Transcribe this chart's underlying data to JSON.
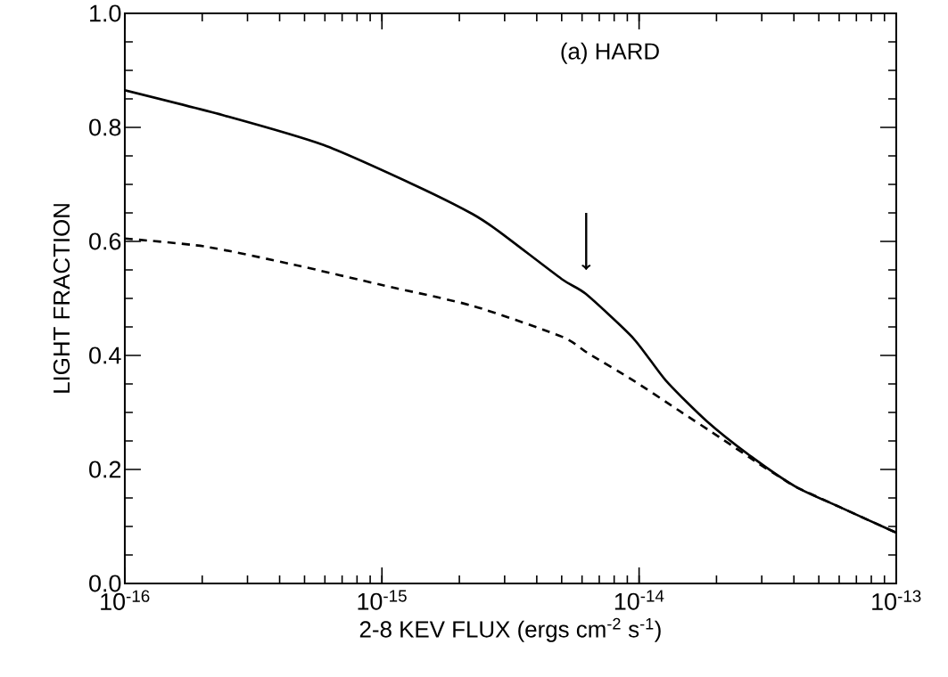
{
  "chart_data": {
    "type": "line",
    "xlabel": "2-8 KEV FLUX (ergs cm$^{-2}$ s$^{-1}$)",
    "ylabel": "LIGHT FRACTION",
    "annotations": [
      "(a) HARD"
    ],
    "log": "x",
    "grid": false,
    "xlim": [
      1e-16,
      1e-13
    ],
    "ylim": [
      0,
      1
    ],
    "xticks": [
      {
        "value": 1e-16,
        "label": "10$^{-16}$"
      },
      {
        "value": 1e-15,
        "label": "10$^{-15}$"
      },
      {
        "value": 1e-14,
        "label": "10$^{-14}$"
      },
      {
        "value": 1e-13,
        "label": "10$^{-13}$"
      }
    ],
    "yticks": [
      {
        "value": 0,
        "label": "0.0"
      },
      0.2,
      0.4,
      0.6,
      0.8,
      {
        "value": 1,
        "label": "1.0"
      }
    ],
    "series": [
      {
        "color": "#000000",
        "line_style": "solid",
        "x": [
          1e-16,
          2.47e-16,
          5.93e-16,
          1.32e-15,
          2.25e-15,
          2.86e-15,
          5e-15,
          6.2e-15,
          9.5e-15,
          1.27e-14,
          1.84e-14,
          2.74e-14,
          4.09e-14,
          6.1e-14,
          1e-13
        ],
        "values": [
          0.865,
          0.82,
          0.769,
          0.7,
          0.648,
          0.617,
          0.534,
          0.508,
          0.43,
          0.356,
          0.284,
          0.222,
          0.169,
          0.133,
          0.089
        ]
      },
      {
        "color": "#000000",
        "line_style": "dashed",
        "x": [
          1e-16,
          2.05e-16,
          4.56e-16,
          1.01e-15,
          2.25e-15,
          5e-15,
          6.37e-15,
          9.5e-15,
          1.41e-14,
          2.11e-14,
          2.9e-14,
          3.6e-14,
          4.09e-14,
          6.1e-14,
          1e-13
        ],
        "values": [
          0.605,
          0.591,
          0.559,
          0.523,
          0.487,
          0.433,
          0.403,
          0.356,
          0.305,
          0.253,
          0.211,
          0.184,
          0.169,
          0.133,
          0.089
        ]
      }
    ]
  }
}
